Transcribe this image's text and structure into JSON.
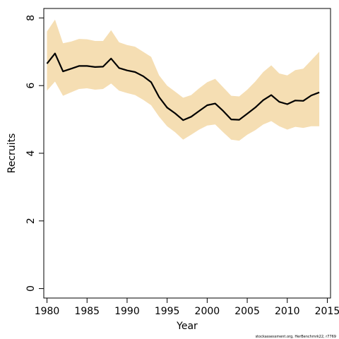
{
  "chart_data": {
    "type": "line",
    "title": "",
    "xlabel": "Year",
    "ylabel": "Recruits",
    "xlim": [
      1979.6,
      2015.4
    ],
    "ylim": [
      -0.28,
      8.28
    ],
    "xticks": [
      1980,
      1985,
      1990,
      1995,
      2000,
      2005,
      2010,
      2015
    ],
    "yticks": [
      0,
      2,
      4,
      6,
      8
    ],
    "grid": false,
    "colors": {
      "band": "#f5deb3",
      "line": "#000000"
    },
    "x": [
      1980,
      1981,
      1982,
      1983,
      1984,
      1985,
      1986,
      1987,
      1988,
      1989,
      1990,
      1991,
      1992,
      1993,
      1994,
      1995,
      1996,
      1997,
      1998,
      1999,
      2000,
      2001,
      2002,
      2003,
      2004,
      2005,
      2006,
      2007,
      2008,
      2009,
      2010,
      2011,
      2012,
      2013,
      2014
    ],
    "series": [
      {
        "values": [
          6.65,
          6.95,
          6.42,
          6.5,
          6.58,
          6.58,
          6.55,
          6.56,
          6.8,
          6.52,
          6.45,
          6.4,
          6.28,
          6.1,
          5.66,
          5.35,
          5.18,
          4.98,
          5.08,
          5.25,
          5.42,
          5.47,
          5.25,
          5.0,
          4.99,
          5.17,
          5.35,
          5.57,
          5.72,
          5.52,
          5.45,
          5.56,
          5.55,
          5.71,
          5.8
        ]
      }
    ],
    "band": {
      "upper": [
        7.6,
        7.95,
        7.25,
        7.3,
        7.38,
        7.37,
        7.32,
        7.32,
        7.64,
        7.28,
        7.2,
        7.15,
        7.0,
        6.85,
        6.3,
        6.0,
        5.82,
        5.64,
        5.72,
        5.92,
        6.1,
        6.2,
        5.95,
        5.7,
        5.68,
        5.88,
        6.12,
        6.4,
        6.6,
        6.36,
        6.3,
        6.46,
        6.5,
        6.75,
        7.0
      ],
      "lower": [
        5.85,
        6.12,
        5.7,
        5.8,
        5.9,
        5.92,
        5.88,
        5.9,
        6.06,
        5.85,
        5.78,
        5.72,
        5.58,
        5.42,
        5.08,
        4.8,
        4.62,
        4.4,
        4.55,
        4.7,
        4.82,
        4.85,
        4.62,
        4.4,
        4.37,
        4.55,
        4.68,
        4.85,
        4.95,
        4.8,
        4.7,
        4.78,
        4.75,
        4.8,
        4.8
      ]
    },
    "footnote": "stockassessment.org, HerBenchmrk22, r7769"
  }
}
